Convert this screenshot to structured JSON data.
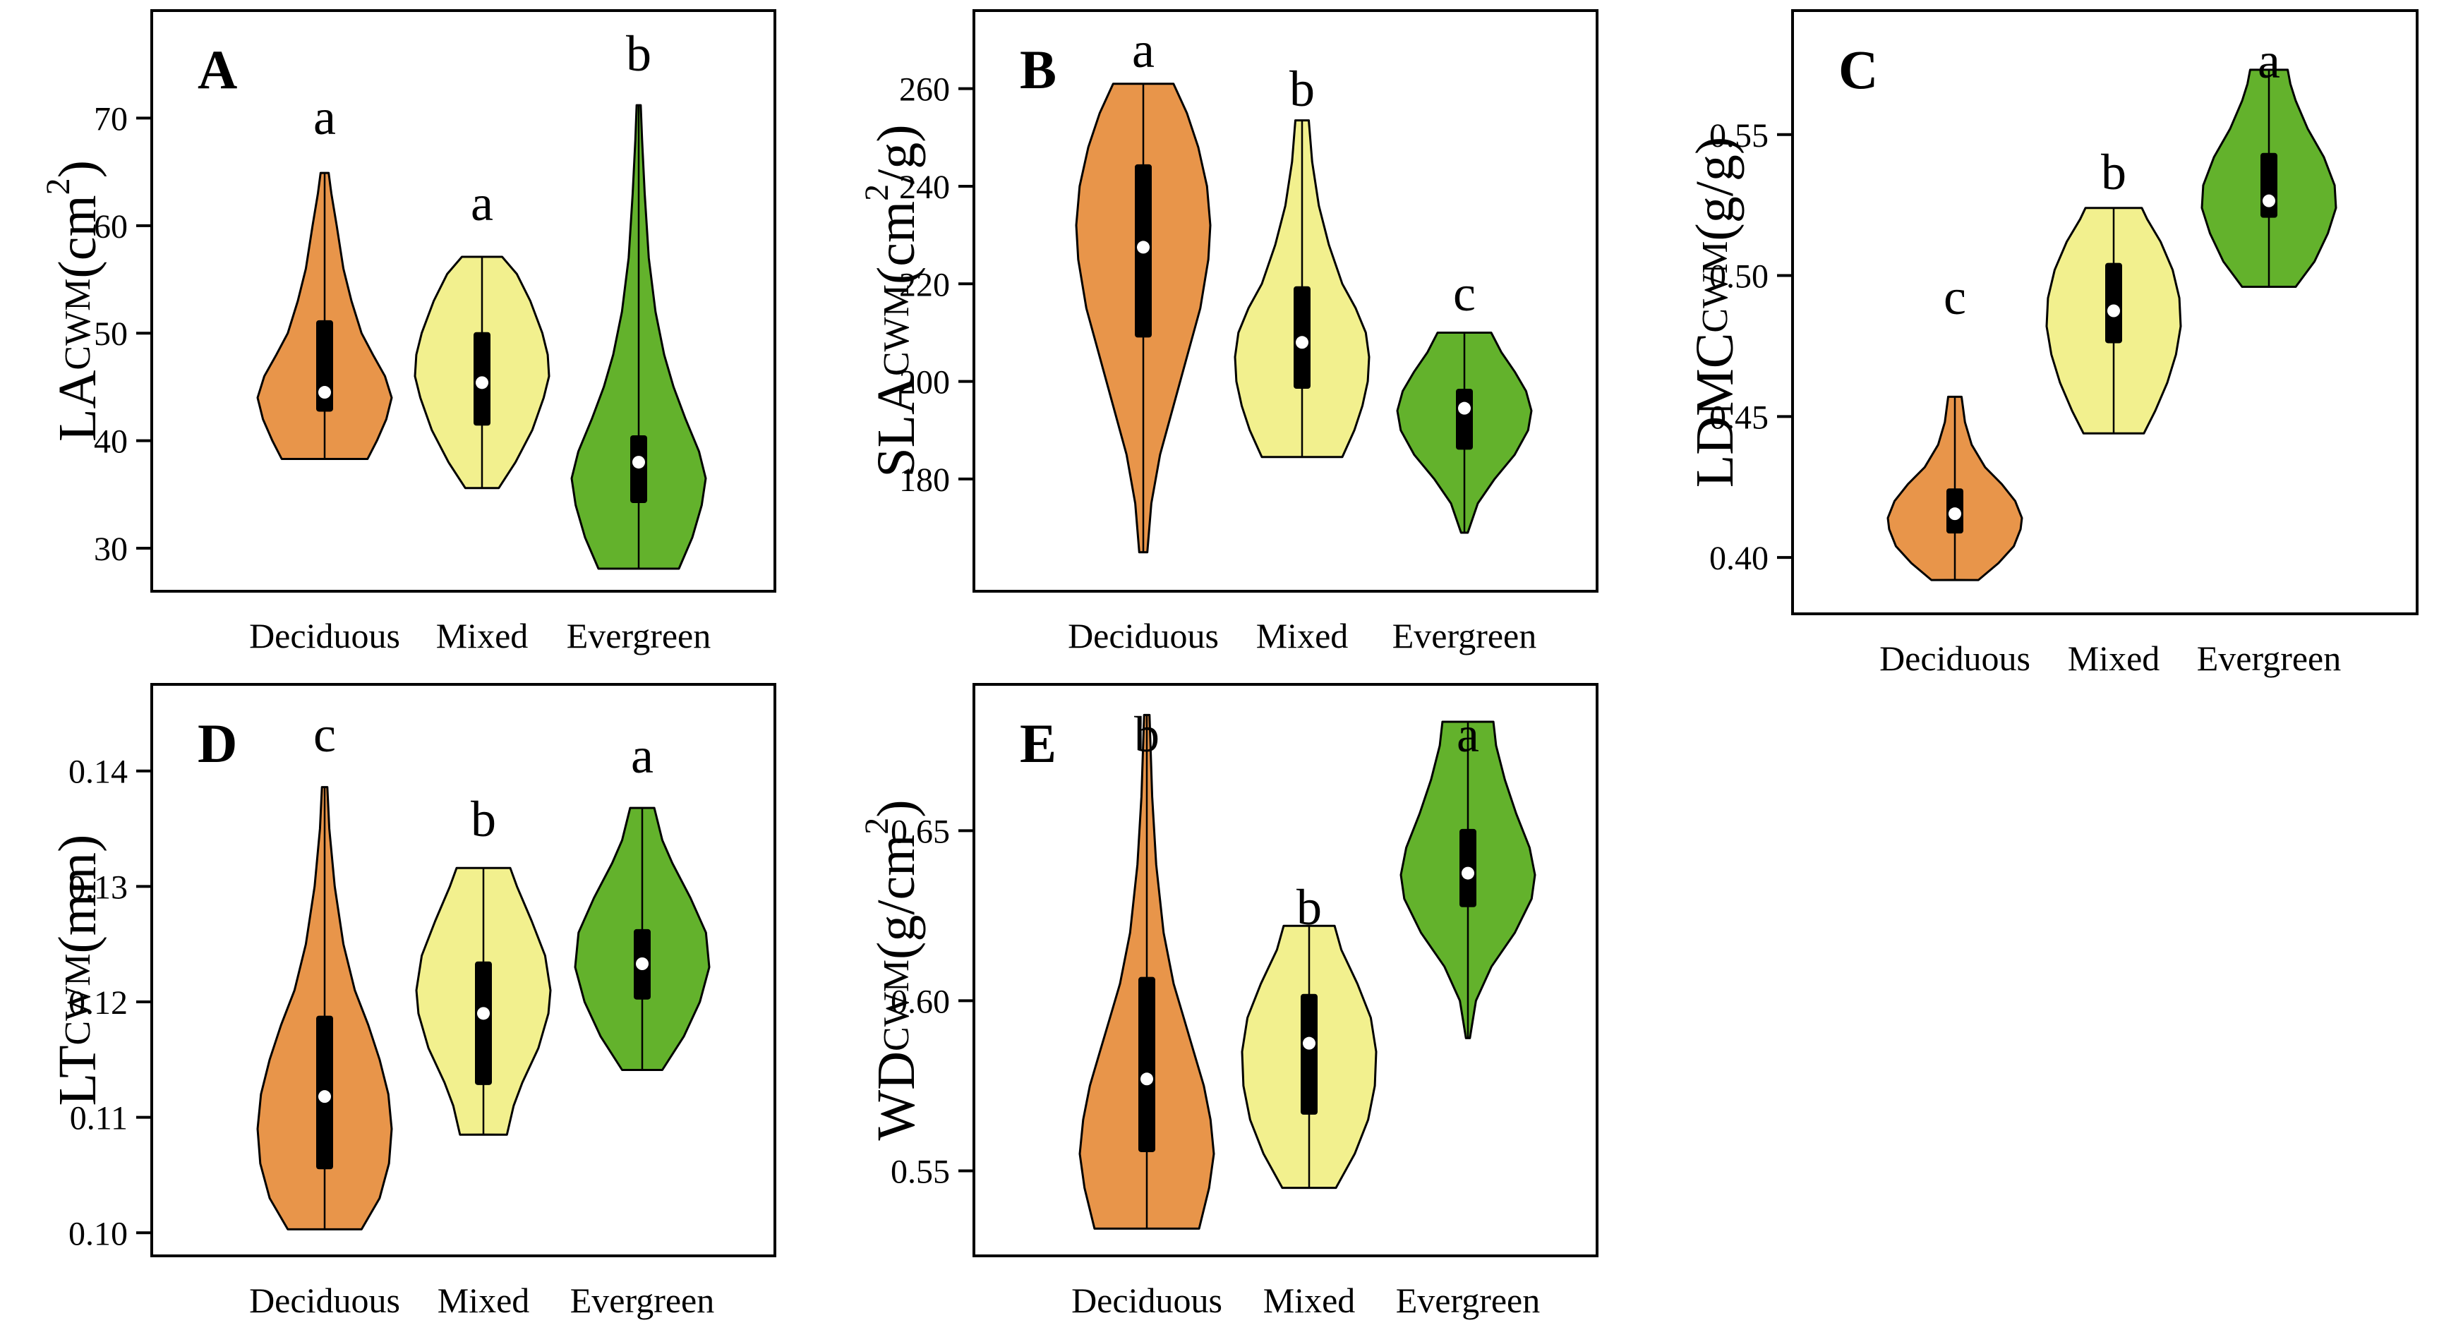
{
  "colors": {
    "Deciduous": "#E8954A",
    "Mixed": "#F2F08E",
    "Evergreen": "#63B22C"
  },
  "chart_data": [
    {
      "type": "violin",
      "panel": "A",
      "ylabel_main": "LA",
      "ylabel_sub": "CWM",
      "ylabel_unit": "(cm",
      "ylabel_sup": "2",
      "ylabel_end": ")",
      "ylim": [
        26,
        80
      ],
      "yticks": [
        30,
        40,
        50,
        60,
        70
      ],
      "ytick_labels": [
        "30",
        "40",
        "50",
        "60",
        "70"
      ],
      "categories": [
        "Deciduous",
        "Mixed",
        "Evergreen"
      ],
      "letters": [
        "a",
        "a",
        "b"
      ],
      "series": [
        {
          "name": "Deciduous",
          "min": 38.3,
          "q1": 42.7,
          "median": 44.5,
          "q3": 51.2,
          "max": 64.9,
          "profile": [
            [
              38.3,
              0.64
            ],
            [
              40,
              0.78
            ],
            [
              42,
              0.92
            ],
            [
              44,
              1.0
            ],
            [
              46,
              0.9
            ],
            [
              48,
              0.72
            ],
            [
              50,
              0.55
            ],
            [
              53,
              0.4
            ],
            [
              56,
              0.28
            ],
            [
              60,
              0.18
            ],
            [
              63,
              0.1
            ],
            [
              64.9,
              0.06
            ]
          ]
        },
        {
          "name": "Mixed",
          "min": 35.6,
          "q1": 41.4,
          "median": 45.4,
          "q3": 50.1,
          "max": 57.1,
          "profile": [
            [
              35.6,
              0.25
            ],
            [
              38,
              0.5
            ],
            [
              41,
              0.75
            ],
            [
              44,
              0.92
            ],
            [
              46,
              1.0
            ],
            [
              48,
              0.98
            ],
            [
              50,
              0.9
            ],
            [
              53,
              0.72
            ],
            [
              55.5,
              0.52
            ],
            [
              57.1,
              0.3
            ]
          ]
        },
        {
          "name": "Evergreen",
          "min": 28.1,
          "q1": 34.2,
          "median": 38.0,
          "q3": 40.5,
          "max": 71.2,
          "profile": [
            [
              28.1,
              0.6
            ],
            [
              31,
              0.8
            ],
            [
              34,
              0.94
            ],
            [
              36.5,
              1.0
            ],
            [
              39,
              0.9
            ],
            [
              42,
              0.7
            ],
            [
              45,
              0.52
            ],
            [
              48,
              0.38
            ],
            [
              52,
              0.25
            ],
            [
              57,
              0.15
            ],
            [
              63,
              0.09
            ],
            [
              68,
              0.05
            ],
            [
              71.2,
              0.03
            ]
          ]
        }
      ]
    },
    {
      "type": "violin",
      "panel": "B",
      "ylabel_main": "SLA",
      "ylabel_sub": "CWM",
      "ylabel_unit": "(cm",
      "ylabel_sup": "2",
      "ylabel_end": "/g)",
      "ylim": [
        157,
        276
      ],
      "yticks": [
        180,
        200,
        220,
        240,
        260
      ],
      "ytick_labels": [
        "180",
        "200",
        "220",
        "240",
        "260"
      ],
      "categories": [
        "Deciduous",
        "Mixed",
        "Evergreen"
      ],
      "letters": [
        "a",
        "b",
        "c"
      ],
      "series": [
        {
          "name": "Deciduous",
          "min": 165,
          "q1": 209,
          "median": 227.5,
          "q3": 244.5,
          "max": 261,
          "profile": [
            [
              165,
              0.06
            ],
            [
              175,
              0.12
            ],
            [
              185,
              0.25
            ],
            [
              195,
              0.45
            ],
            [
              205,
              0.65
            ],
            [
              215,
              0.85
            ],
            [
              225,
              0.97
            ],
            [
              232,
              1.0
            ],
            [
              240,
              0.95
            ],
            [
              248,
              0.82
            ],
            [
              255,
              0.65
            ],
            [
              261,
              0.45
            ]
          ]
        },
        {
          "name": "Mixed",
          "min": 184.5,
          "q1": 198.5,
          "median": 208,
          "q3": 219.5,
          "max": 253.5,
          "profile": [
            [
              184.5,
              0.6
            ],
            [
              190,
              0.78
            ],
            [
              195,
              0.9
            ],
            [
              200,
              0.98
            ],
            [
              205,
              1.0
            ],
            [
              210,
              0.95
            ],
            [
              215,
              0.8
            ],
            [
              220,
              0.6
            ],
            [
              228,
              0.4
            ],
            [
              236,
              0.25
            ],
            [
              245,
              0.15
            ],
            [
              253.5,
              0.1
            ]
          ]
        },
        {
          "name": "Evergreen",
          "min": 169,
          "q1": 186,
          "median": 194.5,
          "q3": 198.5,
          "max": 210,
          "profile": [
            [
              169,
              0.05
            ],
            [
              175,
              0.2
            ],
            [
              180,
              0.45
            ],
            [
              185,
              0.75
            ],
            [
              190,
              0.95
            ],
            [
              194,
              1.0
            ],
            [
              198,
              0.92
            ],
            [
              202,
              0.75
            ],
            [
              206,
              0.55
            ],
            [
              210,
              0.4
            ]
          ]
        }
      ]
    },
    {
      "type": "violin",
      "panel": "C",
      "ylabel_main": "LDMC",
      "ylabel_sub": "CWM",
      "ylabel_unit": "(g/g)",
      "ylabel_sup": "",
      "ylabel_end": "",
      "ylim": [
        0.38,
        0.594
      ],
      "yticks": [
        0.4,
        0.45,
        0.5,
        0.55
      ],
      "ytick_labels": [
        "0.40",
        "0.45",
        "0.50",
        "0.55"
      ],
      "categories": [
        "Deciduous",
        "Mixed",
        "Evergreen"
      ],
      "letters": [
        "c",
        "b",
        "a"
      ],
      "series": [
        {
          "name": "Deciduous",
          "min": 0.392,
          "q1": 0.4085,
          "median": 0.4155,
          "q3": 0.4245,
          "max": 0.457,
          "profile": [
            [
              0.392,
              0.35
            ],
            [
              0.398,
              0.65
            ],
            [
              0.404,
              0.88
            ],
            [
              0.41,
              0.98
            ],
            [
              0.414,
              1.0
            ],
            [
              0.42,
              0.9
            ],
            [
              0.426,
              0.7
            ],
            [
              0.432,
              0.45
            ],
            [
              0.44,
              0.25
            ],
            [
              0.448,
              0.15
            ],
            [
              0.457,
              0.1
            ]
          ]
        },
        {
          "name": "Mixed",
          "min": 0.444,
          "q1": 0.476,
          "median": 0.4875,
          "q3": 0.5045,
          "max": 0.524,
          "profile": [
            [
              0.444,
              0.45
            ],
            [
              0.452,
              0.62
            ],
            [
              0.462,
              0.8
            ],
            [
              0.472,
              0.93
            ],
            [
              0.482,
              1.0
            ],
            [
              0.492,
              0.98
            ],
            [
              0.502,
              0.88
            ],
            [
              0.512,
              0.7
            ],
            [
              0.52,
              0.5
            ],
            [
              0.524,
              0.42
            ]
          ]
        },
        {
          "name": "Evergreen",
          "min": 0.496,
          "q1": 0.5205,
          "median": 0.5265,
          "q3": 0.5435,
          "max": 0.573,
          "profile": [
            [
              0.496,
              0.4
            ],
            [
              0.505,
              0.68
            ],
            [
              0.515,
              0.88
            ],
            [
              0.524,
              1.0
            ],
            [
              0.532,
              0.98
            ],
            [
              0.542,
              0.82
            ],
            [
              0.552,
              0.58
            ],
            [
              0.562,
              0.4
            ],
            [
              0.568,
              0.32
            ],
            [
              0.573,
              0.28
            ]
          ]
        }
      ]
    },
    {
      "type": "violin",
      "panel": "D",
      "ylabel_main": "LT",
      "ylabel_sub": "CWM",
      "ylabel_unit": "(mm)",
      "ylabel_sup": "",
      "ylabel_end": "",
      "ylim": [
        0.098,
        0.1475
      ],
      "yticks": [
        0.1,
        0.11,
        0.12,
        0.13,
        0.14
      ],
      "ytick_labels": [
        "0.10",
        "0.11",
        "0.12",
        "0.13",
        "0.14"
      ],
      "categories": [
        "Deciduous",
        "Mixed",
        "Evergreen"
      ],
      "letters": [
        "c",
        "b",
        "a"
      ],
      "series": [
        {
          "name": "Deciduous",
          "min": 0.1003,
          "q1": 0.1055,
          "median": 0.1118,
          "q3": 0.1188,
          "max": 0.1386,
          "profile": [
            [
              0.1003,
              0.55
            ],
            [
              0.103,
              0.82
            ],
            [
              0.106,
              0.96
            ],
            [
              0.109,
              1.0
            ],
            [
              0.112,
              0.95
            ],
            [
              0.115,
              0.82
            ],
            [
              0.118,
              0.65
            ],
            [
              0.121,
              0.45
            ],
            [
              0.125,
              0.28
            ],
            [
              0.13,
              0.15
            ],
            [
              0.135,
              0.07
            ],
            [
              0.1386,
              0.04
            ]
          ]
        },
        {
          "name": "Mixed",
          "min": 0.1085,
          "q1": 0.1128,
          "median": 0.119,
          "q3": 0.1235,
          "max": 0.1316,
          "profile": [
            [
              0.1085,
              0.35
            ],
            [
              0.111,
              0.45
            ],
            [
              0.113,
              0.58
            ],
            [
              0.116,
              0.82
            ],
            [
              0.119,
              0.97
            ],
            [
              0.121,
              1.0
            ],
            [
              0.124,
              0.92
            ],
            [
              0.127,
              0.72
            ],
            [
              0.13,
              0.5
            ],
            [
              0.1316,
              0.4
            ]
          ]
        },
        {
          "name": "Evergreen",
          "min": 0.1141,
          "q1": 0.1202,
          "median": 0.1233,
          "q3": 0.1263,
          "max": 0.1368,
          "profile": [
            [
              0.1141,
              0.3
            ],
            [
              0.117,
              0.62
            ],
            [
              0.12,
              0.86
            ],
            [
              0.123,
              1.0
            ],
            [
              0.126,
              0.95
            ],
            [
              0.129,
              0.72
            ],
            [
              0.132,
              0.45
            ],
            [
              0.134,
              0.3
            ],
            [
              0.1368,
              0.18
            ]
          ]
        }
      ]
    },
    {
      "type": "violin",
      "panel": "E",
      "ylabel_main": "WD",
      "ylabel_sub": "CWM",
      "ylabel_unit": "(g/cm",
      "ylabel_sup": "2",
      "ylabel_end": ")",
      "ylim": [
        0.525,
        0.693
      ],
      "yticks": [
        0.55,
        0.6,
        0.65
      ],
      "ytick_labels": [
        "0.55",
        "0.60",
        "0.65"
      ],
      "categories": [
        "Deciduous",
        "Mixed",
        "Evergreen"
      ],
      "letters": [
        "b",
        "b",
        "a"
      ],
      "series": [
        {
          "name": "Deciduous",
          "min": 0.533,
          "q1": 0.5555,
          "median": 0.577,
          "q3": 0.607,
          "max": 0.684,
          "profile": [
            [
              0.533,
              0.78
            ],
            [
              0.545,
              0.93
            ],
            [
              0.555,
              1.0
            ],
            [
              0.565,
              0.95
            ],
            [
              0.575,
              0.85
            ],
            [
              0.585,
              0.7
            ],
            [
              0.595,
              0.55
            ],
            [
              0.605,
              0.4
            ],
            [
              0.62,
              0.25
            ],
            [
              0.64,
              0.14
            ],
            [
              0.66,
              0.08
            ],
            [
              0.684,
              0.04
            ]
          ]
        },
        {
          "name": "Mixed",
          "min": 0.545,
          "q1": 0.5665,
          "median": 0.5875,
          "q3": 0.602,
          "max": 0.622,
          "profile": [
            [
              0.545,
              0.4
            ],
            [
              0.555,
              0.68
            ],
            [
              0.565,
              0.88
            ],
            [
              0.575,
              0.98
            ],
            [
              0.585,
              1.0
            ],
            [
              0.595,
              0.92
            ],
            [
              0.605,
              0.72
            ],
            [
              0.615,
              0.48
            ],
            [
              0.622,
              0.38
            ]
          ]
        },
        {
          "name": "Evergreen",
          "min": 0.589,
          "q1": 0.6275,
          "median": 0.6375,
          "q3": 0.6505,
          "max": 0.682,
          "profile": [
            [
              0.589,
              0.03
            ],
            [
              0.6,
              0.12
            ],
            [
              0.61,
              0.35
            ],
            [
              0.62,
              0.7
            ],
            [
              0.63,
              0.95
            ],
            [
              0.637,
              1.0
            ],
            [
              0.645,
              0.92
            ],
            [
              0.655,
              0.72
            ],
            [
              0.665,
              0.55
            ],
            [
              0.675,
              0.42
            ],
            [
              0.682,
              0.38
            ]
          ]
        }
      ]
    }
  ]
}
